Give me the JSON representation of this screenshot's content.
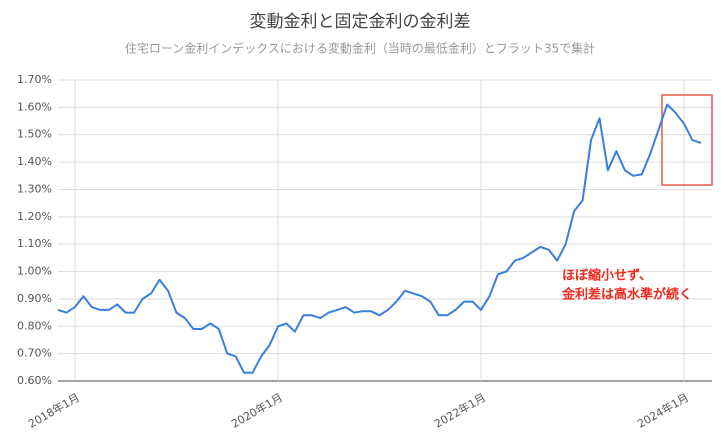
{
  "chart_data": {
    "type": "line",
    "title": "変動金利と固定金利の金利差",
    "subtitle": "住宅ローン金利インデックスにおける変動金利（当時の最低金利）とフラット35で集計",
    "annotations": [
      "ほぼ縮小せず、",
      "金利差は高水準が続く"
    ],
    "categories": [
      null,
      null,
      "2018年1月",
      null,
      null,
      null,
      null,
      null,
      null,
      null,
      null,
      null,
      null,
      null,
      null,
      null,
      null,
      null,
      null,
      null,
      null,
      null,
      null,
      null,
      null,
      null,
      "2020年1月",
      null,
      null,
      null,
      null,
      null,
      null,
      null,
      null,
      null,
      null,
      null,
      null,
      null,
      null,
      null,
      null,
      null,
      null,
      null,
      null,
      null,
      null,
      null,
      "2022年1月",
      null,
      null,
      null,
      null,
      null,
      null,
      null,
      null,
      null,
      null,
      null,
      null,
      null,
      null,
      null,
      null,
      null,
      null,
      null,
      null,
      null,
      null,
      null,
      "2024年1月",
      null,
      null
    ],
    "values": [
      0.86,
      0.85,
      0.87,
      0.91,
      0.87,
      0.86,
      0.86,
      0.88,
      0.85,
      0.85,
      0.9,
      0.92,
      0.97,
      0.93,
      0.85,
      0.83,
      0.79,
      0.79,
      0.81,
      0.79,
      0.7,
      0.69,
      0.63,
      0.63,
      0.69,
      0.73,
      0.8,
      0.81,
      0.78,
      0.84,
      0.84,
      0.83,
      0.85,
      0.86,
      0.87,
      0.85,
      0.855,
      0.855,
      0.84,
      0.86,
      0.89,
      0.93,
      0.92,
      0.91,
      0.89,
      0.84,
      0.84,
      0.86,
      0.89,
      0.89,
      0.86,
      0.91,
      0.99,
      1.0,
      1.04,
      1.05,
      1.07,
      1.09,
      1.08,
      1.04,
      1.1,
      1.22,
      1.26,
      1.48,
      1.56,
      1.37,
      1.44,
      1.37,
      1.35,
      1.355,
      1.43,
      1.52,
      1.61,
      1.58,
      1.54,
      1.48,
      1.47
    ],
    "color": "#3a7fdc",
    "ylim": [
      0.6,
      1.7
    ],
    "yticks": [
      {
        "value": 0.6,
        "label": "0.60%"
      },
      {
        "value": 0.7,
        "label": "0.70%"
      },
      {
        "value": 0.8,
        "label": "0.80%"
      },
      {
        "value": 0.9,
        "label": "0.90%"
      },
      {
        "value": 1.0,
        "label": "1.00%"
      },
      {
        "value": 1.1,
        "label": "1.10%"
      },
      {
        "value": 1.2,
        "label": "1.20%"
      },
      {
        "value": 1.3,
        "label": "1.30%"
      },
      {
        "value": 1.4,
        "label": "1.40%"
      },
      {
        "value": 1.5,
        "label": "1.50%"
      },
      {
        "value": 1.6,
        "label": "1.60%"
      },
      {
        "value": 1.7,
        "label": "1.70%"
      }
    ],
    "grid": true
  }
}
